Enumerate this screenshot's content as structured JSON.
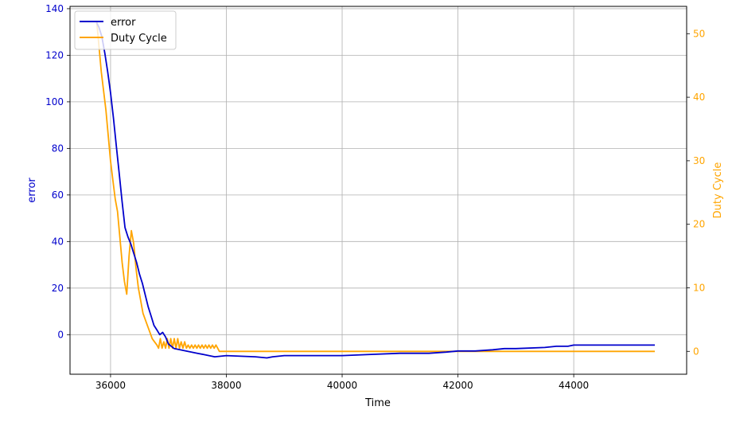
{
  "chart_data": {
    "type": "line",
    "xlabel": "Time",
    "ylabel_left": "error",
    "ylabel_right": "Duty Cycle",
    "xlim": [
      35300,
      45950
    ],
    "ylim_left": [
      -17,
      141
    ],
    "ylim_right": [
      -3.6,
      54.3
    ],
    "x_ticks": [
      36000,
      38000,
      40000,
      42000,
      44000
    ],
    "y_ticks_left": [
      0,
      20,
      40,
      60,
      80,
      100,
      120,
      140
    ],
    "y_ticks_right": [
      0,
      10,
      20,
      30,
      40,
      50
    ],
    "grid": true,
    "legend_position": "top-left",
    "colors": {
      "error": "#0000cc",
      "duty": "#ffa500",
      "left_axis": "#0000cc",
      "right_axis": "#ffa500"
    },
    "series": [
      {
        "name": "error",
        "axis": "left",
        "x": [
          35760,
          35800,
          35850,
          35900,
          35950,
          36000,
          36050,
          36100,
          36150,
          36200,
          36250,
          36300,
          36350,
          36400,
          36450,
          36500,
          36550,
          36600,
          36650,
          36700,
          36750,
          36800,
          36850,
          36900,
          36950,
          37000,
          37050,
          37100,
          37200,
          37300,
          37400,
          37500,
          37600,
          37700,
          37800,
          38000,
          38500,
          38700,
          38800,
          39000,
          39500,
          40000,
          40500,
          41000,
          41500,
          41800,
          42000,
          42300,
          42600,
          42800,
          43000,
          43500,
          43700,
          43900,
          44000,
          44500,
          45000,
          45300,
          45400
        ],
        "values": [
          134,
          132,
          128,
          121,
          113,
          104,
          93,
          81,
          69,
          57,
          46,
          42,
          39,
          35,
          31,
          26,
          22,
          17,
          12,
          8,
          4,
          2,
          0,
          1,
          -1,
          -4,
          -5,
          -6,
          -6.5,
          -7,
          -7.5,
          -8,
          -8.5,
          -9,
          -9.5,
          -9,
          -9.5,
          -10,
          -9.5,
          -9,
          -9,
          -9,
          -8.5,
          -8,
          -8,
          -7.5,
          -7,
          -7,
          -6.5,
          -6,
          -6,
          -5.5,
          -5,
          -5,
          -4.5,
          -4.5,
          -4.5,
          -4.5,
          -4.5
        ]
      },
      {
        "name": "Duty Cycle",
        "axis": "right",
        "x": [
          35760,
          35800,
          35840,
          35880,
          35920,
          35960,
          36000,
          36040,
          36080,
          36120,
          36160,
          36200,
          36240,
          36280,
          36320,
          36360,
          36400,
          36440,
          36480,
          36520,
          36560,
          36600,
          36640,
          36680,
          36720,
          36760,
          36800,
          36830,
          36860,
          36890,
          36920,
          36950,
          36980,
          37010,
          37040,
          37070,
          37100,
          37130,
          37160,
          37190,
          37220,
          37250,
          37280,
          37310,
          37340,
          37370,
          37400,
          37430,
          37460,
          37490,
          37520,
          37550,
          37580,
          37610,
          37640,
          37670,
          37700,
          37730,
          37760,
          37790,
          37820,
          37850,
          37880,
          37900,
          40600,
          41000,
          41400,
          41800,
          42000,
          42500,
          42700,
          43500,
          43700,
          43900,
          44000,
          45250,
          45400
        ],
        "values": [
          52,
          48,
          44,
          41,
          38,
          34,
          30,
          27,
          24,
          22,
          18,
          14,
          11,
          9,
          15,
          19,
          17,
          13,
          10,
          8,
          6,
          5,
          4,
          3,
          2,
          1.5,
          1,
          0.5,
          2,
          0.5,
          1.5,
          0.5,
          2,
          0.5,
          2,
          0.5,
          2,
          0.5,
          2,
          0.5,
          1.5,
          0.5,
          1.5,
          0.5,
          1,
          0.5,
          1,
          0.5,
          1,
          0.5,
          1,
          0.5,
          1,
          0.5,
          1,
          0.5,
          1,
          0.5,
          1,
          0.5,
          1,
          0.5,
          0,
          0,
          0,
          0,
          0,
          0,
          0,
          0,
          0,
          0,
          0,
          0,
          0,
          0,
          0
        ]
      }
    ]
  }
}
